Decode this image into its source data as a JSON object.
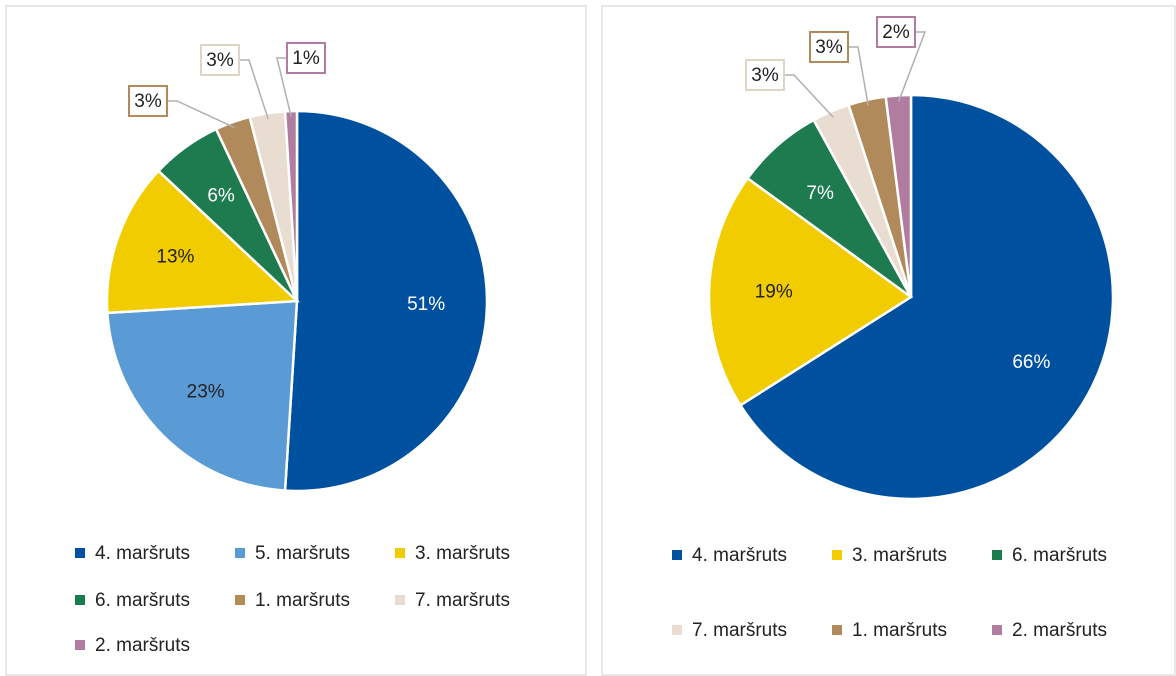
{
  "chart_data": [
    {
      "type": "pie",
      "categories": [
        "4. maršruts",
        "5. maršruts",
        "3. maršruts",
        "6. maršruts",
        "1. maršruts",
        "7. maršruts",
        "2. maršruts"
      ],
      "values": [
        51,
        23,
        13,
        6,
        3,
        3,
        1
      ],
      "value_labels": [
        "51%",
        "23%",
        "13%",
        "6%",
        "3%",
        "3%",
        "1%"
      ],
      "colors": [
        "#0050a0",
        "#5b9bd5",
        "#f0cc00",
        "#1e7b50",
        "#b08a5a",
        "#e8ddd0",
        "#b07ca0"
      ]
    },
    {
      "type": "pie",
      "categories": [
        "4. maršruts",
        "3. maršruts",
        "6. maršruts",
        "7. maršruts",
        "1. maršruts",
        "2. maršruts"
      ],
      "values": [
        66,
        19,
        7,
        3,
        3,
        2
      ],
      "value_labels": [
        "66%",
        "19%",
        "7%",
        "3%",
        "3%",
        "2%"
      ],
      "colors": [
        "#0050a0",
        "#f0cc00",
        "#1e7b50",
        "#e8ddd0",
        "#b08a5a",
        "#b07ca0"
      ]
    }
  ]
}
